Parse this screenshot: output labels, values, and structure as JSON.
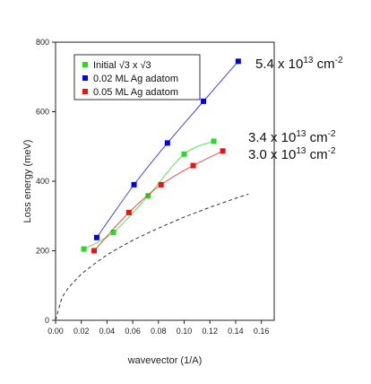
{
  "chart_data": {
    "type": "scatter",
    "title": "",
    "xlabel": "wavevector (1/A)",
    "ylabel": "Loss energy (meV)",
    "xlim": [
      0.0,
      0.17
    ],
    "ylim": [
      0,
      800
    ],
    "x_ticks": [
      "0.00",
      "0.02",
      "0.04",
      "0.06",
      "0.08",
      "0.10",
      "0.12",
      "0.14",
      "0.16"
    ],
    "y_ticks": [
      "0",
      "200",
      "400",
      "600",
      "800"
    ],
    "grid": false,
    "legend_position": "top-left",
    "series": [
      {
        "name": "Initial √3 x √3",
        "color": "#22dd22",
        "marker": "square",
        "line": "solid",
        "x": [
          0.022,
          0.045,
          0.072,
          0.1,
          0.123
        ],
        "y": [
          205,
          253,
          358,
          478,
          515
        ]
      },
      {
        "name": "0.02 ML Ag adatom",
        "color": "#0000ee",
        "marker": "square",
        "line": "solid",
        "x": [
          0.032,
          0.061,
          0.087,
          0.115,
          0.142
        ],
        "y": [
          238,
          390,
          510,
          630,
          745
        ]
      },
      {
        "name": "0.05 ML Ag adatom",
        "color": "#ee1111",
        "marker": "square",
        "line": "solid",
        "x": [
          0.03,
          0.057,
          0.082,
          0.107,
          0.13
        ],
        "y": [
          200,
          310,
          390,
          445,
          487
        ]
      },
      {
        "color": "#333333",
        "marker": "none",
        "line": "dashed",
        "x": [
          0.0,
          0.005,
          0.01,
          0.02,
          0.03,
          0.04,
          0.05,
          0.06,
          0.07,
          0.08,
          0.09,
          0.1,
          0.11,
          0.12,
          0.13,
          0.14,
          0.15
        ],
        "y": [
          0,
          66,
          94,
          133,
          162,
          188,
          210,
          230,
          248,
          265,
          281,
          297,
          311,
          325,
          338,
          351,
          363
        ]
      }
    ],
    "annotations": [
      {
        "base": "5.4 x 10",
        "exp": "13",
        "unit": " cm",
        "unit_exp": "-2"
      },
      {
        "base": "3.4 x 10",
        "exp": "13",
        "unit": " cm",
        "unit_exp": "-2"
      },
      {
        "base": "3.0 x 10",
        "exp": "13",
        "unit": " cm",
        "unit_exp": "-2"
      }
    ]
  }
}
